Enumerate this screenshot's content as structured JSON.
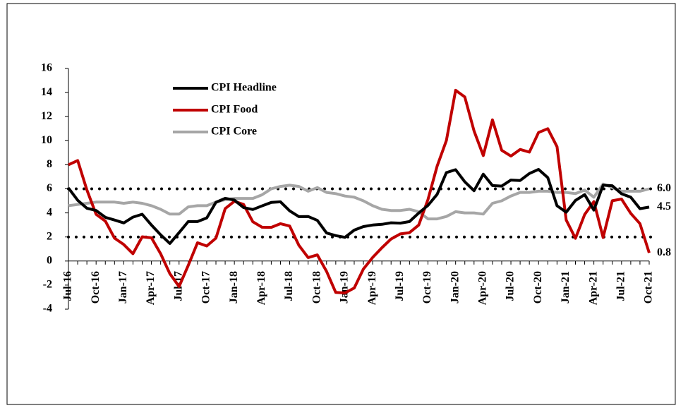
{
  "chart_data": {
    "type": "line",
    "categories": [
      "Jul-16",
      null,
      null,
      "Oct-16",
      null,
      null,
      "Jan-17",
      null,
      null,
      "Apr-17",
      null,
      null,
      "Jul-17",
      null,
      null,
      "Oct-17",
      null,
      null,
      "Jan-18",
      null,
      null,
      "Apr-18",
      null,
      null,
      "Jul-18",
      null,
      null,
      "Oct-18",
      null,
      null,
      "Jan-19",
      null,
      null,
      "Apr-19",
      null,
      null,
      "Jul-19",
      null,
      null,
      "Oct-19",
      null,
      null,
      "Jan-20",
      null,
      null,
      "Apr-20",
      null,
      null,
      "Jul-20",
      null,
      null,
      "Oct-20",
      null,
      null,
      "Jan-21",
      null,
      null,
      "Apr-21",
      null,
      null,
      "Jul-21",
      null,
      null,
      "Oct-21"
    ],
    "series": [
      {
        "name": "CPI Headline",
        "color": "#000000",
        "end_label": "4.5",
        "values": [
          6.07,
          5.05,
          4.39,
          4.2,
          3.63,
          3.41,
          3.17,
          3.65,
          3.89,
          2.99,
          2.18,
          1.46,
          2.36,
          3.28,
          3.28,
          3.58,
          4.88,
          5.21,
          5.07,
          4.44,
          4.28,
          4.58,
          4.87,
          4.92,
          4.17,
          3.69,
          3.7,
          3.38,
          2.33,
          2.11,
          1.97,
          2.57,
          2.86,
          2.99,
          3.05,
          3.18,
          3.15,
          3.28,
          3.99,
          4.62,
          5.54,
          7.35,
          7.59,
          6.58,
          5.84,
          7.22,
          6.27,
          6.23,
          6.73,
          6.69,
          7.27,
          7.61,
          6.93,
          4.59,
          4.06,
          5.03,
          5.52,
          4.23,
          6.3,
          6.26,
          5.59,
          5.3,
          4.35,
          4.48
        ]
      },
      {
        "name": "CPI Food",
        "color": "#c00000",
        "end_label": "0.8",
        "values": [
          8.0,
          8.35,
          5.91,
          3.88,
          3.32,
          1.9,
          1.37,
          0.61,
          2.01,
          1.93,
          0.61,
          -1.05,
          -2.12,
          -0.36,
          1.52,
          1.25,
          1.9,
          4.35,
          4.96,
          4.7,
          3.26,
          2.81,
          2.8,
          3.1,
          2.91,
          1.3,
          0.29,
          0.51,
          -0.86,
          -2.61,
          -2.65,
          -2.24,
          -0.66,
          0.3,
          1.1,
          1.83,
          2.25,
          2.36,
          2.99,
          5.11,
          7.89,
          10.01,
          14.19,
          13.63,
          10.81,
          8.76,
          11.73,
          9.2,
          8.72,
          9.27,
          9.05,
          10.68,
          11.0,
          9.5,
          3.41,
          1.89,
          3.87,
          4.94,
          1.96,
          5.01,
          5.15,
          3.96,
          3.11,
          0.68
        ]
      },
      {
        "name": "CPI Core",
        "color": "#a6a6a6",
        "end_label": "6.0",
        "values": [
          4.6,
          4.7,
          4.8,
          4.9,
          4.9,
          4.9,
          4.8,
          4.9,
          4.8,
          4.6,
          4.3,
          3.9,
          3.9,
          4.5,
          4.6,
          4.6,
          4.9,
          5.1,
          5.2,
          5.2,
          5.2,
          5.5,
          6.0,
          6.2,
          6.3,
          6.2,
          5.8,
          6.1,
          5.7,
          5.6,
          5.4,
          5.3,
          5.0,
          4.6,
          4.3,
          4.2,
          4.2,
          4.3,
          4.1,
          3.5,
          3.5,
          3.7,
          4.1,
          4.0,
          4.0,
          3.9,
          4.8,
          5.0,
          5.4,
          5.7,
          5.7,
          5.8,
          5.8,
          5.7,
          5.7,
          5.6,
          5.9,
          5.3,
          6.4,
          6.1,
          5.8,
          5.8,
          5.8,
          6.0
        ]
      }
    ],
    "ylim": [
      -4,
      16
    ],
    "yticks": [
      -4,
      -2,
      0,
      2,
      4,
      6,
      8,
      10,
      12,
      14,
      16
    ],
    "hlines": [
      6,
      2
    ],
    "grid": false,
    "legend": "upper-left"
  }
}
